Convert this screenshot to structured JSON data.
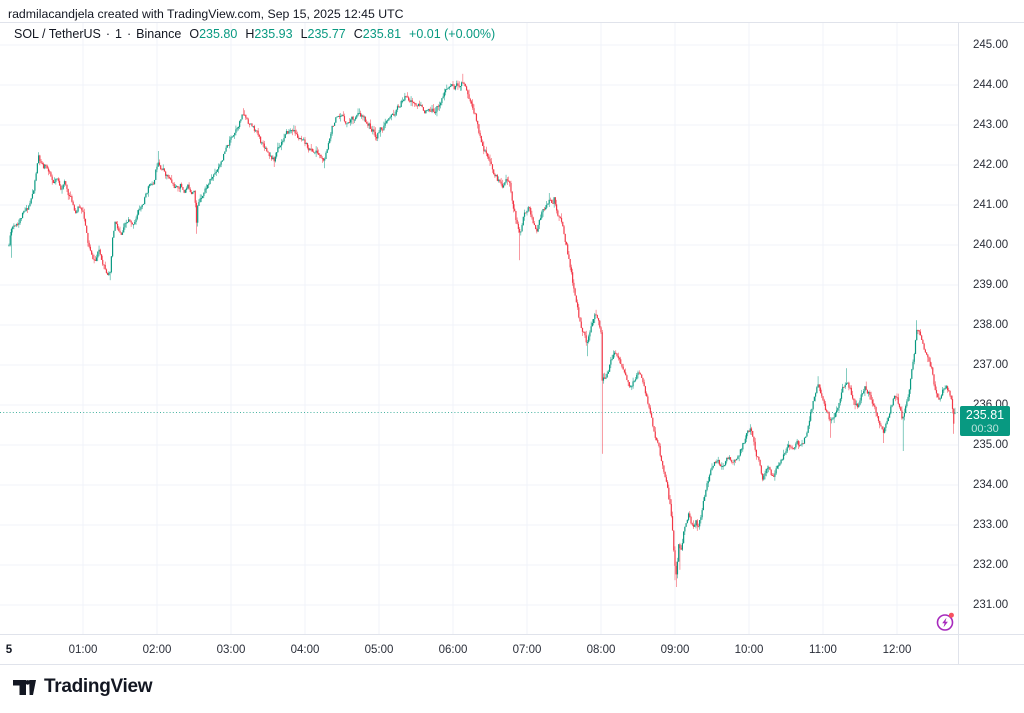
{
  "attribution": "radmilacandjela created with TradingView.com, Sep 15, 2025 12:45 UTC",
  "legend": {
    "symbol": "SOL / TetherUS",
    "separator": "·",
    "interval": "1",
    "exchange": "Binance",
    "ohlc": [
      {
        "label": "O",
        "value": "235.80"
      },
      {
        "label": "H",
        "value": "235.93"
      },
      {
        "label": "L",
        "value": "235.77"
      },
      {
        "label": "C",
        "value": "235.81"
      }
    ],
    "change": "+0.01 (+0.00%)"
  },
  "price_scale": {
    "labels": [
      "245.00",
      "244.00",
      "243.00",
      "242.00",
      "241.00",
      "240.00",
      "239.00",
      "238.00",
      "237.00",
      "236.00",
      "235.00",
      "234.00",
      "233.00",
      "232.00",
      "231.00"
    ],
    "last": {
      "price": "235.81",
      "countdown": "00:30"
    }
  },
  "time_scale": {
    "labels": [
      {
        "text": "5",
        "minute": 0,
        "bold": true
      },
      {
        "text": "01:00",
        "minute": 60
      },
      {
        "text": "02:00",
        "minute": 120
      },
      {
        "text": "03:00",
        "minute": 180
      },
      {
        "text": "04:00",
        "minute": 240
      },
      {
        "text": "05:00",
        "minute": 300
      },
      {
        "text": "06:00",
        "minute": 360
      },
      {
        "text": "07:00",
        "minute": 420
      },
      {
        "text": "08:00",
        "minute": 480
      },
      {
        "text": "09:00",
        "minute": 540
      },
      {
        "text": "10:00",
        "minute": 600
      },
      {
        "text": "11:00",
        "minute": 660
      },
      {
        "text": "12:00",
        "minute": 720
      }
    ]
  },
  "logo": {
    "text": "TradingView"
  },
  "icons": {
    "lightning": "lightning-bolt-in-circle",
    "alert_dot": "red-notification-dot"
  },
  "colors": {
    "up": "#089981",
    "down": "#f23645",
    "grid": "#f0f3fa",
    "border": "#e0e3eb",
    "axis_text": "#2a2e39",
    "text": "#131722",
    "label_bg": "#089981",
    "accent_purple": "#a72abd",
    "alert_dot": "#f7525f",
    "background": "#ffffff"
  },
  "chart_data": {
    "type": "candlestick",
    "title": "SOL / TetherUS · 1 · Binance",
    "x_unit": "minutes after 00:00 UTC Sep 15 2025",
    "x_range": [
      0,
      767
    ],
    "ylim": [
      230.7,
      245.35
    ],
    "y_ticks": [
      231,
      232,
      233,
      234,
      235,
      236,
      237,
      238,
      239,
      240,
      241,
      242,
      243,
      244,
      245
    ],
    "grid": true,
    "price_line": 235.81,
    "final_candle": {
      "open": 235.8,
      "high": 235.93,
      "low": 235.77,
      "close": 235.81
    },
    "seed": 11,
    "noise_amp": 0.07,
    "wick_amp": 0.12,
    "anchors": [
      [
        0,
        240.0
      ],
      [
        2,
        240.45
      ],
      [
        5,
        240.55
      ],
      [
        8,
        240.6
      ],
      [
        11,
        240.75
      ],
      [
        14,
        240.85
      ],
      [
        17,
        241.05
      ],
      [
        20,
        241.35
      ],
      [
        22,
        241.8
      ],
      [
        24,
        242.2
      ],
      [
        26,
        242.0
      ],
      [
        28,
        241.9
      ],
      [
        30,
        242.0
      ],
      [
        33,
        241.75
      ],
      [
        36,
        241.5
      ],
      [
        39,
        241.6
      ],
      [
        42,
        241.45
      ],
      [
        45,
        241.55
      ],
      [
        48,
        241.3
      ],
      [
        51,
        241.1
      ],
      [
        54,
        240.85
      ],
      [
        57,
        240.95
      ],
      [
        60,
        240.9
      ],
      [
        62,
        240.45
      ],
      [
        64,
        240.05
      ],
      [
        67,
        239.7
      ],
      [
        70,
        239.6
      ],
      [
        73,
        239.85
      ],
      [
        76,
        239.6
      ],
      [
        79,
        239.4
      ],
      [
        82,
        239.25
      ],
      [
        84,
        240.1
      ],
      [
        86,
        240.55
      ],
      [
        88,
        240.4
      ],
      [
        91,
        240.2
      ],
      [
        94,
        240.45
      ],
      [
        97,
        240.6
      ],
      [
        100,
        240.45
      ],
      [
        103,
        240.7
      ],
      [
        106,
        240.9
      ],
      [
        109,
        241.05
      ],
      [
        112,
        241.35
      ],
      [
        115,
        241.6
      ],
      [
        117,
        241.45
      ],
      [
        119,
        241.85
      ],
      [
        121,
        242.15
      ],
      [
        123,
        242.0
      ],
      [
        125,
        241.9
      ],
      [
        127,
        241.8
      ],
      [
        130,
        241.65
      ],
      [
        133,
        241.5
      ],
      [
        136,
        241.4
      ],
      [
        139,
        241.5
      ],
      [
        142,
        241.35
      ],
      [
        145,
        241.45
      ],
      [
        148,
        241.35
      ],
      [
        150,
        241.45
      ],
      [
        151,
        241.1
      ],
      [
        152,
        240.55
      ],
      [
        153,
        240.95
      ],
      [
        155,
        241.2
      ],
      [
        158,
        241.35
      ],
      [
        161,
        241.5
      ],
      [
        164,
        241.65
      ],
      [
        167,
        241.8
      ],
      [
        170,
        242.0
      ],
      [
        174,
        242.25
      ],
      [
        178,
        242.5
      ],
      [
        182,
        242.8
      ],
      [
        186,
        243.05
      ],
      [
        190,
        243.25
      ],
      [
        193,
        243.15
      ],
      [
        196,
        243.0
      ],
      [
        200,
        242.85
      ],
      [
        204,
        242.6
      ],
      [
        208,
        242.45
      ],
      [
        212,
        242.25
      ],
      [
        215,
        242.1
      ],
      [
        218,
        242.45
      ],
      [
        222,
        242.65
      ],
      [
        226,
        242.8
      ],
      [
        230,
        242.9
      ],
      [
        234,
        242.7
      ],
      [
        238,
        242.55
      ],
      [
        242,
        242.45
      ],
      [
        246,
        242.35
      ],
      [
        250,
        242.3
      ],
      [
        254,
        242.15
      ],
      [
        256,
        242.1
      ],
      [
        258,
        242.35
      ],
      [
        260,
        242.7
      ],
      [
        262,
        243.0
      ],
      [
        265,
        243.15
      ],
      [
        268,
        243.1
      ],
      [
        271,
        243.2
      ],
      [
        274,
        243.05
      ],
      [
        277,
        243.15
      ],
      [
        280,
        243.2
      ],
      [
        283,
        243.25
      ],
      [
        286,
        243.2
      ],
      [
        289,
        243.1
      ],
      [
        292,
        243.0
      ],
      [
        295,
        242.85
      ],
      [
        298,
        242.7
      ],
      [
        301,
        242.9
      ],
      [
        305,
        243.0
      ],
      [
        309,
        243.15
      ],
      [
        313,
        243.3
      ],
      [
        317,
        243.5
      ],
      [
        320,
        243.65
      ],
      [
        323,
        243.75
      ],
      [
        326,
        243.6
      ],
      [
        330,
        243.5
      ],
      [
        334,
        243.45
      ],
      [
        338,
        243.35
      ],
      [
        342,
        243.3
      ],
      [
        346,
        243.4
      ],
      [
        350,
        243.6
      ],
      [
        354,
        243.85
      ],
      [
        358,
        244.0
      ],
      [
        361,
        243.95
      ],
      [
        364,
        244.0
      ],
      [
        366,
        244.05
      ],
      [
        368,
        244.1
      ],
      [
        370,
        244.0
      ],
      [
        372,
        243.8
      ],
      [
        374,
        243.6
      ],
      [
        376,
        243.45
      ],
      [
        378,
        243.25
      ],
      [
        380,
        243.0
      ],
      [
        382,
        242.7
      ],
      [
        384,
        242.55
      ],
      [
        386,
        242.35
      ],
      [
        388,
        242.2
      ],
      [
        390,
        242.0
      ],
      [
        392,
        241.9
      ],
      [
        394,
        241.75
      ],
      [
        396,
        241.65
      ],
      [
        398,
        241.55
      ],
      [
        400,
        241.5
      ],
      [
        403,
        241.7
      ],
      [
        406,
        241.5
      ],
      [
        409,
        241.0
      ],
      [
        412,
        240.5
      ],
      [
        414,
        240.25
      ],
      [
        416,
        240.5
      ],
      [
        418,
        240.8
      ],
      [
        421,
        241.0
      ],
      [
        424,
        240.7
      ],
      [
        426,
        240.45
      ],
      [
        428,
        240.3
      ],
      [
        430,
        240.6
      ],
      [
        433,
        240.9
      ],
      [
        436,
        241.1
      ],
      [
        438,
        241.2
      ],
      [
        440,
        241.0
      ],
      [
        442,
        241.15
      ],
      [
        444,
        240.9
      ],
      [
        446,
        240.7
      ],
      [
        448,
        240.55
      ],
      [
        450,
        240.3
      ],
      [
        452,
        240.0
      ],
      [
        454,
        239.6
      ],
      [
        456,
        239.25
      ],
      [
        458,
        238.9
      ],
      [
        460,
        238.55
      ],
      [
        462,
        238.2
      ],
      [
        464,
        238.0
      ],
      [
        466,
        237.8
      ],
      [
        468,
        237.6
      ],
      [
        470,
        237.7
      ],
      [
        472,
        237.9
      ],
      [
        474,
        238.1
      ],
      [
        476,
        238.25
      ],
      [
        478,
        238.1
      ],
      [
        480,
        237.9
      ],
      [
        481,
        236.6
      ],
      [
        483,
        236.65
      ],
      [
        486,
        236.9
      ],
      [
        489,
        237.15
      ],
      [
        492,
        237.3
      ],
      [
        495,
        237.15
      ],
      [
        498,
        236.9
      ],
      [
        501,
        236.6
      ],
      [
        504,
        236.4
      ],
      [
        507,
        236.6
      ],
      [
        510,
        236.8
      ],
      [
        513,
        236.6
      ],
      [
        516,
        236.3
      ],
      [
        519,
        235.95
      ],
      [
        522,
        235.5
      ],
      [
        525,
        235.15
      ],
      [
        528,
        234.75
      ],
      [
        531,
        234.35
      ],
      [
        534,
        233.95
      ],
      [
        536,
        233.5
      ],
      [
        538,
        232.8
      ],
      [
        540,
        232.0
      ],
      [
        541,
        231.8
      ],
      [
        543,
        232.5
      ],
      [
        545,
        232.4
      ],
      [
        547,
        232.8
      ],
      [
        549,
        233.1
      ],
      [
        551,
        233.3
      ],
      [
        553,
        233.0
      ],
      [
        555,
        232.85
      ],
      [
        557,
        233.05
      ],
      [
        559,
        232.95
      ],
      [
        561,
        233.2
      ],
      [
        563,
        233.6
      ],
      [
        566,
        234.1
      ],
      [
        569,
        234.35
      ],
      [
        572,
        234.5
      ],
      [
        575,
        234.55
      ],
      [
        578,
        234.4
      ],
      [
        581,
        234.55
      ],
      [
        584,
        234.7
      ],
      [
        587,
        234.6
      ],
      [
        590,
        234.65
      ],
      [
        593,
        234.85
      ],
      [
        596,
        235.1
      ],
      [
        599,
        235.3
      ],
      [
        601,
        235.4
      ],
      [
        603,
        235.2
      ],
      [
        606,
        234.8
      ],
      [
        609,
        234.45
      ],
      [
        611,
        234.2
      ],
      [
        613,
        234.25
      ],
      [
        615,
        234.45
      ],
      [
        617,
        234.35
      ],
      [
        619,
        234.25
      ],
      [
        621,
        234.3
      ],
      [
        624,
        234.5
      ],
      [
        627,
        234.65
      ],
      [
        630,
        234.85
      ],
      [
        633,
        234.95
      ],
      [
        636,
        234.9
      ],
      [
        639,
        235.05
      ],
      [
        642,
        234.95
      ],
      [
        645,
        235.15
      ],
      [
        648,
        235.5
      ],
      [
        651,
        235.95
      ],
      [
        654,
        236.35
      ],
      [
        656,
        236.5
      ],
      [
        658,
        236.35
      ],
      [
        660,
        236.1
      ],
      [
        663,
        235.8
      ],
      [
        666,
        235.6
      ],
      [
        669,
        235.7
      ],
      [
        672,
        236.0
      ],
      [
        675,
        236.3
      ],
      [
        678,
        236.55
      ],
      [
        680,
        236.6
      ],
      [
        682,
        236.4
      ],
      [
        685,
        236.1
      ],
      [
        688,
        235.95
      ],
      [
        691,
        236.2
      ],
      [
        694,
        236.4
      ],
      [
        697,
        236.3
      ],
      [
        700,
        236.05
      ],
      [
        703,
        235.8
      ],
      [
        706,
        235.55
      ],
      [
        709,
        235.35
      ],
      [
        712,
        235.6
      ],
      [
        715,
        235.95
      ],
      [
        718,
        236.25
      ],
      [
        720,
        236.15
      ],
      [
        722,
        235.95
      ],
      [
        724,
        235.7
      ],
      [
        726,
        235.85
      ],
      [
        728,
        236.1
      ],
      [
        730,
        236.4
      ],
      [
        732,
        236.8
      ],
      [
        734,
        237.3
      ],
      [
        736,
        237.9
      ],
      [
        738,
        237.8
      ],
      [
        740,
        237.6
      ],
      [
        743,
        237.35
      ],
      [
        746,
        237.1
      ],
      [
        748,
        236.9
      ],
      [
        750,
        236.55
      ],
      [
        752,
        236.3
      ],
      [
        754,
        236.15
      ],
      [
        756,
        236.3
      ],
      [
        758,
        236.45
      ],
      [
        760,
        236.5
      ],
      [
        762,
        236.35
      ],
      [
        764,
        236.2
      ],
      [
        765,
        235.9
      ],
      [
        766,
        235.55
      ],
      [
        767,
        235.81
      ]
    ],
    "wicks": [
      [
        2,
        "l",
        239.68
      ],
      [
        24,
        "h",
        242.32
      ],
      [
        82,
        "l",
        239.12
      ],
      [
        121,
        "h",
        242.35
      ],
      [
        152,
        "l",
        240.28
      ],
      [
        190,
        "h",
        243.42
      ],
      [
        215,
        "l",
        241.95
      ],
      [
        256,
        "l",
        241.92
      ],
      [
        323,
        "h",
        243.82
      ],
      [
        368,
        "h",
        244.28
      ],
      [
        414,
        "l",
        239.62
      ],
      [
        438,
        "h",
        241.3
      ],
      [
        469,
        "l",
        237.22
      ],
      [
        476,
        "h",
        238.38
      ],
      [
        481,
        "l",
        234.78
      ],
      [
        540,
        "l",
        231.62
      ],
      [
        541,
        "l",
        231.45
      ],
      [
        544,
        "l",
        231.88
      ],
      [
        601,
        "h",
        235.52
      ],
      [
        656,
        "h",
        236.72
      ],
      [
        666,
        "l",
        235.18
      ],
      [
        679,
        "h",
        236.92
      ],
      [
        709,
        "l",
        235.05
      ],
      [
        725,
        "l",
        234.85
      ],
      [
        736,
        "h",
        238.12
      ],
      [
        766,
        "l",
        235.28
      ]
    ]
  }
}
